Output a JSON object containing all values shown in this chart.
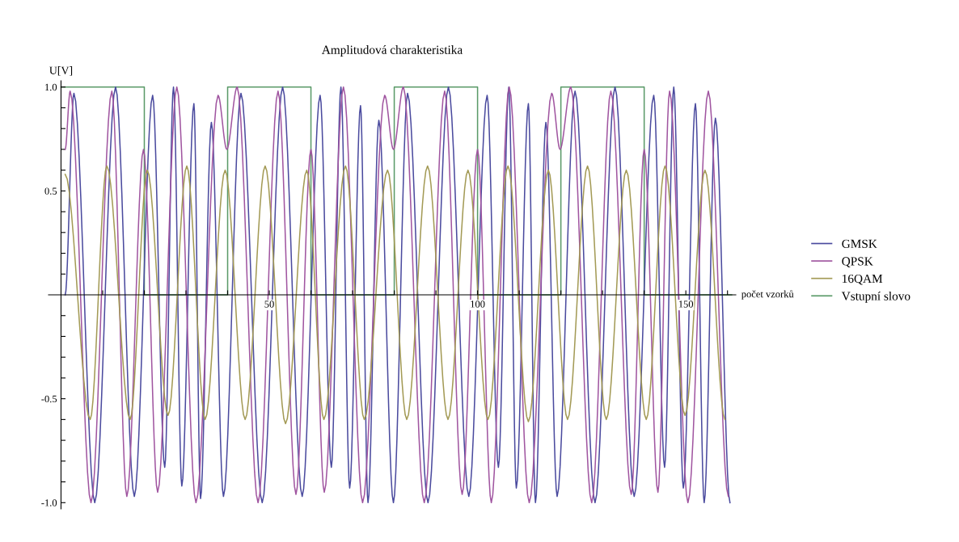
{
  "chart_data": {
    "type": "line",
    "title": "Amplitudová charakteristika",
    "xlabel": "počet vzorků",
    "ylabel": "U[V]",
    "xlim": [
      -3,
      162
    ],
    "ylim": [
      -1.03,
      1.03
    ],
    "xticks": [
      {
        "value": 10,
        "label": null
      },
      {
        "value": 20,
        "label": null
      },
      {
        "value": 30,
        "label": null
      },
      {
        "value": 40,
        "label": null
      },
      50,
      {
        "value": 60,
        "label": null
      },
      {
        "value": 70,
        "label": null
      },
      {
        "value": 80,
        "label": null
      },
      {
        "value": 90,
        "label": null
      },
      100,
      {
        "value": 110,
        "label": null
      },
      {
        "value": 120,
        "label": null
      },
      {
        "value": 130,
        "label": null
      },
      {
        "value": 140,
        "label": null
      },
      150,
      {
        "value": 160,
        "label": null
      }
    ],
    "yticks": [
      {
        "value": -1.0,
        "label": "-1.0"
      },
      {
        "value": -0.9,
        "label": null
      },
      {
        "value": -0.8,
        "label": null
      },
      {
        "value": -0.7,
        "label": null
      },
      {
        "value": -0.6,
        "label": null
      },
      -0.5,
      {
        "value": -0.4,
        "label": null
      },
      {
        "value": -0.3,
        "label": null
      },
      {
        "value": -0.2,
        "label": null
      },
      {
        "value": -0.1,
        "label": null
      },
      {
        "value": 0.1,
        "label": null
      },
      {
        "value": 0.2,
        "label": null
      },
      {
        "value": 0.3,
        "label": null
      },
      {
        "value": 0.4,
        "label": null
      },
      0.5,
      {
        "value": 0.6,
        "label": null
      },
      {
        "value": 0.7,
        "label": null
      },
      {
        "value": 0.8,
        "label": null
      },
      {
        "value": 0.9,
        "label": null
      },
      {
        "value": 1.0,
        "label": "1.0"
      }
    ],
    "grid": false,
    "legend": "right",
    "marker": "none",
    "line_style": "solid",
    "series": [
      {
        "name": "GMSK",
        "color": "#4a4a9e",
        "x": [
          1,
          3.1,
          8.1,
          13.1,
          17.6,
          22,
          24.9,
          27,
          29,
          31.9,
          33.5,
          36.1,
          39,
          43.2,
          48.3,
          53.2,
          57.9,
          62.2,
          64.9,
          67.2,
          69.3,
          71.9,
          73.7,
          76.3,
          79.8,
          83.2,
          88.1,
          93,
          97.9,
          102.3,
          105,
          107.5,
          109.3,
          112.2,
          113.9,
          116.4,
          119.1,
          123.4,
          128.2,
          133,
          137.6,
          142.3,
          144.9,
          147.1,
          149.4,
          152.3,
          154.4,
          157.1,
          160.6
        ],
        "values": [
          0,
          0.97,
          -1,
          1,
          -0.97,
          0.96,
          -0.83,
          1,
          -0.92,
          0.92,
          -0.98,
          0.83,
          -0.97,
          0.97,
          -1,
          1,
          -0.97,
          0.96,
          -0.83,
          1,
          -0.93,
          0.91,
          -1,
          0.84,
          -1,
          0.97,
          -1,
          1,
          -0.97,
          0.96,
          -0.83,
          1,
          -0.93,
          0.92,
          -1,
          0.83,
          -0.97,
          0.98,
          -1,
          1,
          -0.97,
          0.96,
          -0.83,
          1,
          -0.93,
          0.92,
          -1,
          0.85,
          -1
        ]
      },
      {
        "name": "QPSK",
        "color": "#a055a0",
        "x": [
          1,
          2.2,
          7.2,
          12.2,
          15.8,
          19.8,
          23.2,
          27.8,
          32.4,
          37.7,
          39.8,
          42.3,
          47.3,
          52.1,
          56.4,
          60,
          63.2,
          67.8,
          72.4,
          77.7,
          79.8,
          82.2,
          87.2,
          92.1,
          96.3,
          100,
          103.3,
          107.6,
          112.4,
          117.8,
          119.8,
          122.4,
          127.4,
          132,
          136.9,
          140,
          143.3,
          146.1,
          150.5,
          155.4,
          160.2
        ],
        "values": [
          0.7,
          0.98,
          -1,
          0.98,
          -0.97,
          0.7,
          -0.95,
          1,
          -1,
          0.96,
          0.7,
          1,
          -1,
          0.98,
          -0.96,
          0.7,
          -0.95,
          1,
          -1,
          0.96,
          0.7,
          1,
          -1,
          0.98,
          -0.96,
          0.7,
          -1,
          1,
          -1,
          0.97,
          0.7,
          1,
          -1,
          0.98,
          -0.96,
          0.7,
          -0.95,
          0.98,
          -1,
          0.98,
          -0.97
        ]
      },
      {
        "name": "16QAM",
        "color": "#a39a55",
        "x": [
          1,
          7,
          11,
          16.6,
          20.7,
          25.7,
          30.2,
          34.6,
          39.4,
          44.2,
          49,
          53.9,
          59,
          63.1,
          68.3,
          72.8,
          78.4,
          83,
          88,
          92.9,
          97.7,
          102.5,
          107.3,
          112.2,
          117,
          121.6,
          126.4,
          130.9,
          135.7,
          140.5,
          145,
          149.8,
          154.6,
          159.4
        ],
        "values": [
          0.58,
          -0.6,
          0.62,
          -0.6,
          0.6,
          -0.58,
          0.62,
          -0.6,
          0.6,
          -0.6,
          0.62,
          -0.62,
          0.6,
          -0.6,
          0.62,
          -0.6,
          0.6,
          -0.6,
          0.62,
          -0.6,
          0.6,
          -0.6,
          0.62,
          -0.61,
          0.6,
          -0.6,
          0.62,
          -0.6,
          0.6,
          -0.6,
          0.62,
          -0.58,
          0.6,
          -0.6
        ]
      },
      {
        "name": "Vstupní slovo",
        "color": "#5a9a68",
        "type": "step",
        "x": [
          0,
          20,
          40,
          60,
          80,
          100,
          120,
          140,
          161
        ],
        "values": [
          1,
          0,
          1,
          0,
          1,
          0,
          1,
          0,
          0
        ]
      }
    ]
  }
}
